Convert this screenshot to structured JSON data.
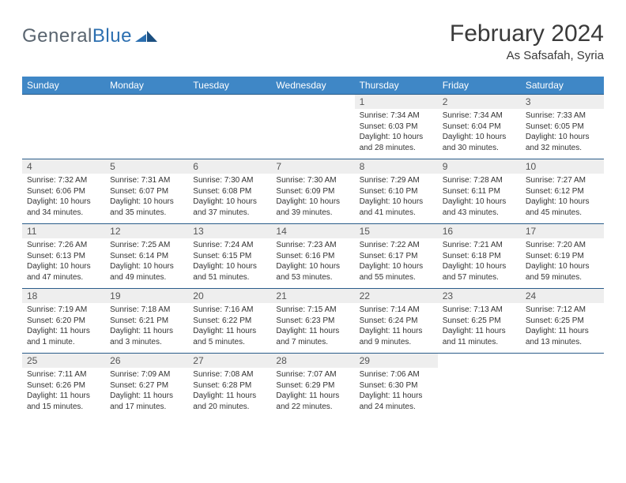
{
  "brand": {
    "part1": "General",
    "part2": "Blue"
  },
  "title": "February 2024",
  "location": "As Safsafah, Syria",
  "colors": {
    "header_bg": "#3f87c6",
    "header_text": "#ffffff",
    "row_divider": "#2b5d8a",
    "daynum_bg": "#eeeeee",
    "body_text": "#333333",
    "brand_gray": "#5a6570",
    "brand_blue": "#2c6fb0"
  },
  "days_of_week": [
    "Sunday",
    "Monday",
    "Tuesday",
    "Wednesday",
    "Thursday",
    "Friday",
    "Saturday"
  ],
  "first_weekday_index": 4,
  "days": [
    {
      "n": 1,
      "sunrise": "7:34 AM",
      "sunset": "6:03 PM",
      "daylight": "10 hours and 28 minutes."
    },
    {
      "n": 2,
      "sunrise": "7:34 AM",
      "sunset": "6:04 PM",
      "daylight": "10 hours and 30 minutes."
    },
    {
      "n": 3,
      "sunrise": "7:33 AM",
      "sunset": "6:05 PM",
      "daylight": "10 hours and 32 minutes."
    },
    {
      "n": 4,
      "sunrise": "7:32 AM",
      "sunset": "6:06 PM",
      "daylight": "10 hours and 34 minutes."
    },
    {
      "n": 5,
      "sunrise": "7:31 AM",
      "sunset": "6:07 PM",
      "daylight": "10 hours and 35 minutes."
    },
    {
      "n": 6,
      "sunrise": "7:30 AM",
      "sunset": "6:08 PM",
      "daylight": "10 hours and 37 minutes."
    },
    {
      "n": 7,
      "sunrise": "7:30 AM",
      "sunset": "6:09 PM",
      "daylight": "10 hours and 39 minutes."
    },
    {
      "n": 8,
      "sunrise": "7:29 AM",
      "sunset": "6:10 PM",
      "daylight": "10 hours and 41 minutes."
    },
    {
      "n": 9,
      "sunrise": "7:28 AM",
      "sunset": "6:11 PM",
      "daylight": "10 hours and 43 minutes."
    },
    {
      "n": 10,
      "sunrise": "7:27 AM",
      "sunset": "6:12 PM",
      "daylight": "10 hours and 45 minutes."
    },
    {
      "n": 11,
      "sunrise": "7:26 AM",
      "sunset": "6:13 PM",
      "daylight": "10 hours and 47 minutes."
    },
    {
      "n": 12,
      "sunrise": "7:25 AM",
      "sunset": "6:14 PM",
      "daylight": "10 hours and 49 minutes."
    },
    {
      "n": 13,
      "sunrise": "7:24 AM",
      "sunset": "6:15 PM",
      "daylight": "10 hours and 51 minutes."
    },
    {
      "n": 14,
      "sunrise": "7:23 AM",
      "sunset": "6:16 PM",
      "daylight": "10 hours and 53 minutes."
    },
    {
      "n": 15,
      "sunrise": "7:22 AM",
      "sunset": "6:17 PM",
      "daylight": "10 hours and 55 minutes."
    },
    {
      "n": 16,
      "sunrise": "7:21 AM",
      "sunset": "6:18 PM",
      "daylight": "10 hours and 57 minutes."
    },
    {
      "n": 17,
      "sunrise": "7:20 AM",
      "sunset": "6:19 PM",
      "daylight": "10 hours and 59 minutes."
    },
    {
      "n": 18,
      "sunrise": "7:19 AM",
      "sunset": "6:20 PM",
      "daylight": "11 hours and 1 minute."
    },
    {
      "n": 19,
      "sunrise": "7:18 AM",
      "sunset": "6:21 PM",
      "daylight": "11 hours and 3 minutes."
    },
    {
      "n": 20,
      "sunrise": "7:16 AM",
      "sunset": "6:22 PM",
      "daylight": "11 hours and 5 minutes."
    },
    {
      "n": 21,
      "sunrise": "7:15 AM",
      "sunset": "6:23 PM",
      "daylight": "11 hours and 7 minutes."
    },
    {
      "n": 22,
      "sunrise": "7:14 AM",
      "sunset": "6:24 PM",
      "daylight": "11 hours and 9 minutes."
    },
    {
      "n": 23,
      "sunrise": "7:13 AM",
      "sunset": "6:25 PM",
      "daylight": "11 hours and 11 minutes."
    },
    {
      "n": 24,
      "sunrise": "7:12 AM",
      "sunset": "6:25 PM",
      "daylight": "11 hours and 13 minutes."
    },
    {
      "n": 25,
      "sunrise": "7:11 AM",
      "sunset": "6:26 PM",
      "daylight": "11 hours and 15 minutes."
    },
    {
      "n": 26,
      "sunrise": "7:09 AM",
      "sunset": "6:27 PM",
      "daylight": "11 hours and 17 minutes."
    },
    {
      "n": 27,
      "sunrise": "7:08 AM",
      "sunset": "6:28 PM",
      "daylight": "11 hours and 20 minutes."
    },
    {
      "n": 28,
      "sunrise": "7:07 AM",
      "sunset": "6:29 PM",
      "daylight": "11 hours and 22 minutes."
    },
    {
      "n": 29,
      "sunrise": "7:06 AM",
      "sunset": "6:30 PM",
      "daylight": "11 hours and 24 minutes."
    }
  ],
  "labels": {
    "sunrise": "Sunrise: ",
    "sunset": "Sunset: ",
    "daylight": "Daylight: "
  }
}
